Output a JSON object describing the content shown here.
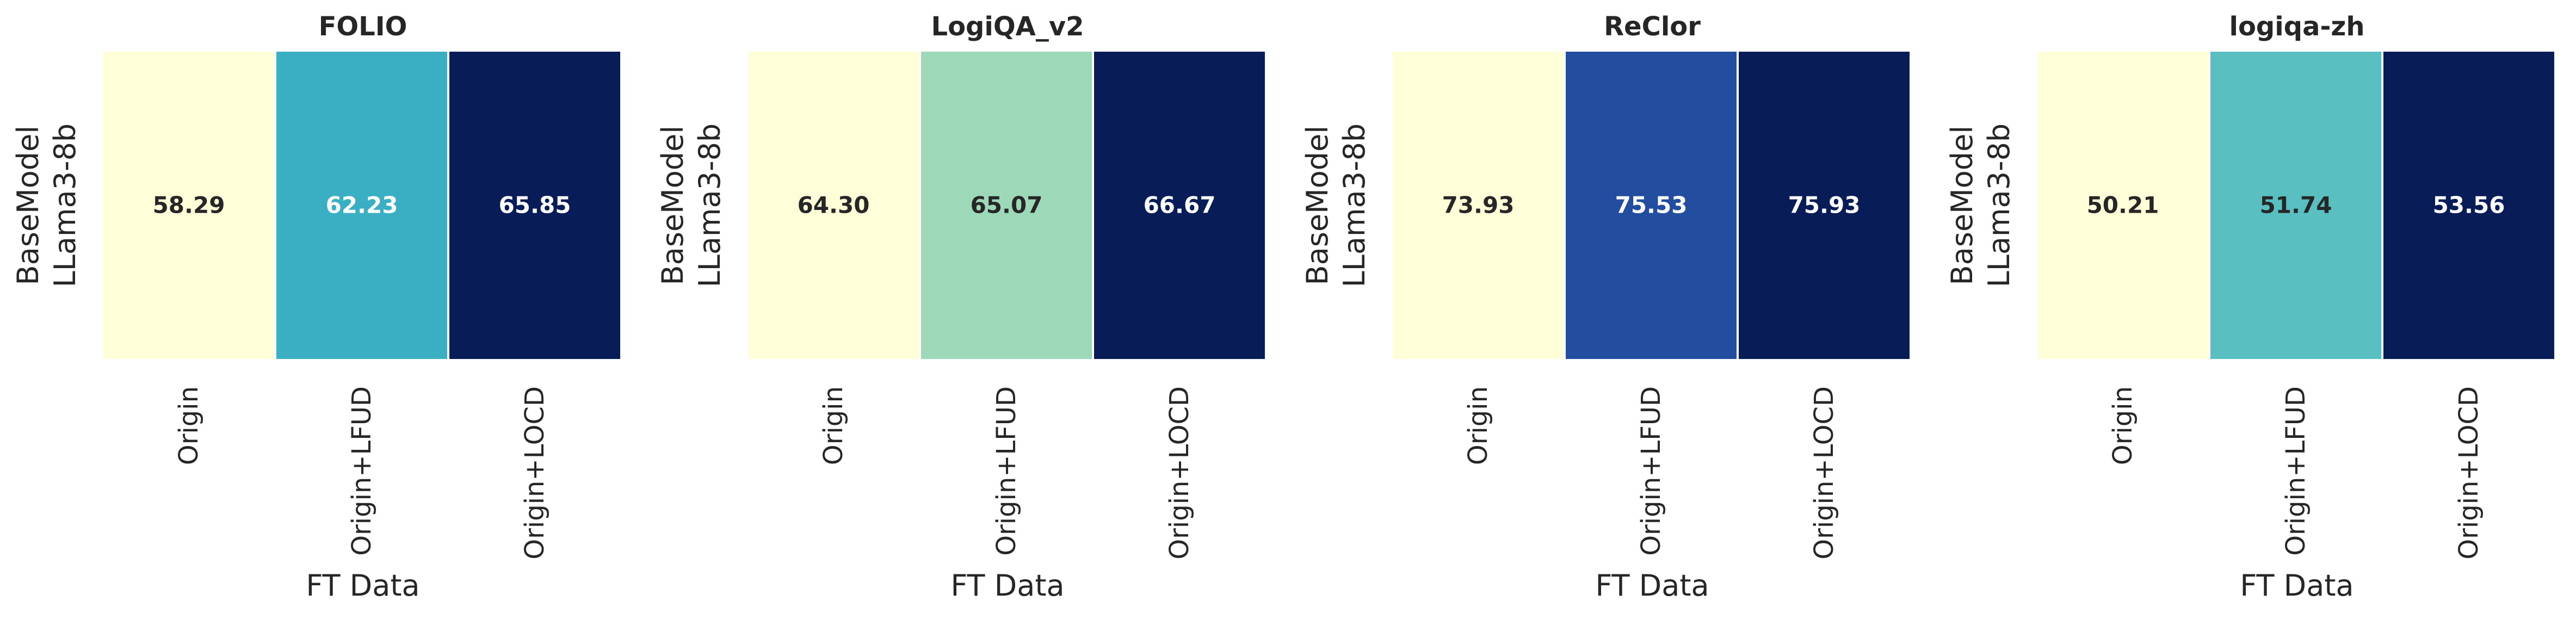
{
  "chart_data": [
    {
      "type": "heatmap",
      "title": "FOLIO",
      "xlabel": "FT Data",
      "ylabel": "BaseModel",
      "categories": [
        "Origin",
        "Origin+LFUD",
        "Origin+LOCD"
      ],
      "rows": [
        "LLama3-8b"
      ],
      "values": [
        58.29,
        62.23,
        65.85
      ],
      "cell_colors": [
        "#feffd8",
        "#3aaec3",
        "#081d58"
      ],
      "label_colors": [
        "#262626",
        "#ffffff",
        "#ffffff"
      ]
    },
    {
      "type": "heatmap",
      "title": "LogiQA_v2",
      "xlabel": "FT Data",
      "ylabel": "BaseModel",
      "categories": [
        "Origin",
        "Origin+LFUD",
        "Origin+LOCD"
      ],
      "rows": [
        "LLama3-8b"
      ],
      "values": [
        "64.30",
        65.07,
        66.67
      ],
      "cell_colors": [
        "#feffd8",
        "#9dd8b8",
        "#081d58"
      ],
      "label_colors": [
        "#262626",
        "#262626",
        "#ffffff"
      ]
    },
    {
      "type": "heatmap",
      "title": "ReClor",
      "xlabel": "FT Data",
      "ylabel": "BaseModel",
      "categories": [
        "Origin",
        "Origin+LFUD",
        "Origin+LOCD"
      ],
      "rows": [
        "LLama3-8b"
      ],
      "values": [
        73.93,
        75.53,
        75.93
      ],
      "cell_colors": [
        "#feffd8",
        "#234ea0",
        "#081d58"
      ],
      "label_colors": [
        "#262626",
        "#ffffff",
        "#ffffff"
      ]
    },
    {
      "type": "heatmap",
      "title": "logiqa-zh",
      "xlabel": "FT Data",
      "ylabel": "BaseModel",
      "categories": [
        "Origin",
        "Origin+LFUD",
        "Origin+LOCD"
      ],
      "rows": [
        "LLama3-8b"
      ],
      "values": [
        50.21,
        51.74,
        53.56
      ],
      "cell_colors": [
        "#feffd8",
        "#59bfc1",
        "#081d58"
      ],
      "label_colors": [
        "#262626",
        "#262626",
        "#ffffff"
      ]
    }
  ]
}
